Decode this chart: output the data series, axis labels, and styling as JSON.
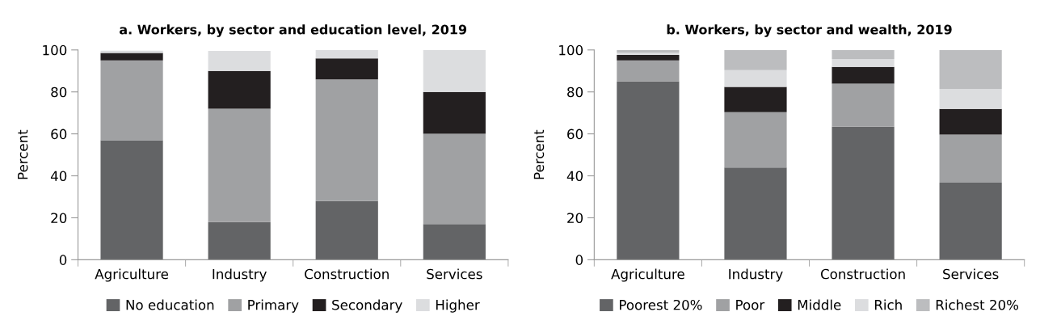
{
  "chart_data": [
    {
      "type": "bar",
      "title": "a. Workers, by sector and education level, 2019",
      "ylabel": "Percent",
      "categories": [
        "Agriculture",
        "Industry",
        "Construction",
        "Services"
      ],
      "stacked": true,
      "ylim": [
        0,
        100
      ],
      "yticks": [
        0,
        20,
        40,
        60,
        80,
        100
      ],
      "grid": false,
      "legend": "bottom",
      "series": [
        {
          "name": "No education",
          "color": "#636466",
          "values": [
            57,
            18,
            28,
            17
          ]
        },
        {
          "name": "Primary",
          "color": "#a0a1a3",
          "values": [
            38,
            54,
            58,
            43
          ]
        },
        {
          "name": "Secondary",
          "color": "#231f20",
          "values": [
            3.6,
            18,
            10,
            20
          ]
        },
        {
          "name": "Higher",
          "color": "#dcdddf",
          "values": [
            1,
            9.5,
            4,
            20
          ]
        }
      ]
    },
    {
      "type": "bar",
      "title": "b. Workers, by sector and wealth, 2019",
      "ylabel": "Percent",
      "categories": [
        "Agriculture",
        "Industry",
        "Construction",
        "Services"
      ],
      "stacked": true,
      "ylim": [
        0,
        100
      ],
      "yticks": [
        0,
        20,
        40,
        60,
        80,
        100
      ],
      "grid": false,
      "legend": "bottom",
      "series": [
        {
          "name": "Poorest 20%",
          "color": "#636466",
          "values": [
            85,
            44,
            63.4,
            36.7
          ]
        },
        {
          "name": "Poor",
          "color": "#a0a1a3",
          "values": [
            10,
            26.4,
            20.5,
            23
          ]
        },
        {
          "name": "Middle",
          "color": "#231f20",
          "values": [
            2.6,
            12,
            8,
            12.2
          ]
        },
        {
          "name": "Rich",
          "color": "#dcdddf",
          "values": [
            1.1,
            8,
            3.8,
            9.5
          ]
        },
        {
          "name": "Richest 20%",
          "color": "#bcbdbf",
          "values": [
            1.3,
            9.6,
            4.3,
            18.6
          ]
        }
      ]
    }
  ]
}
